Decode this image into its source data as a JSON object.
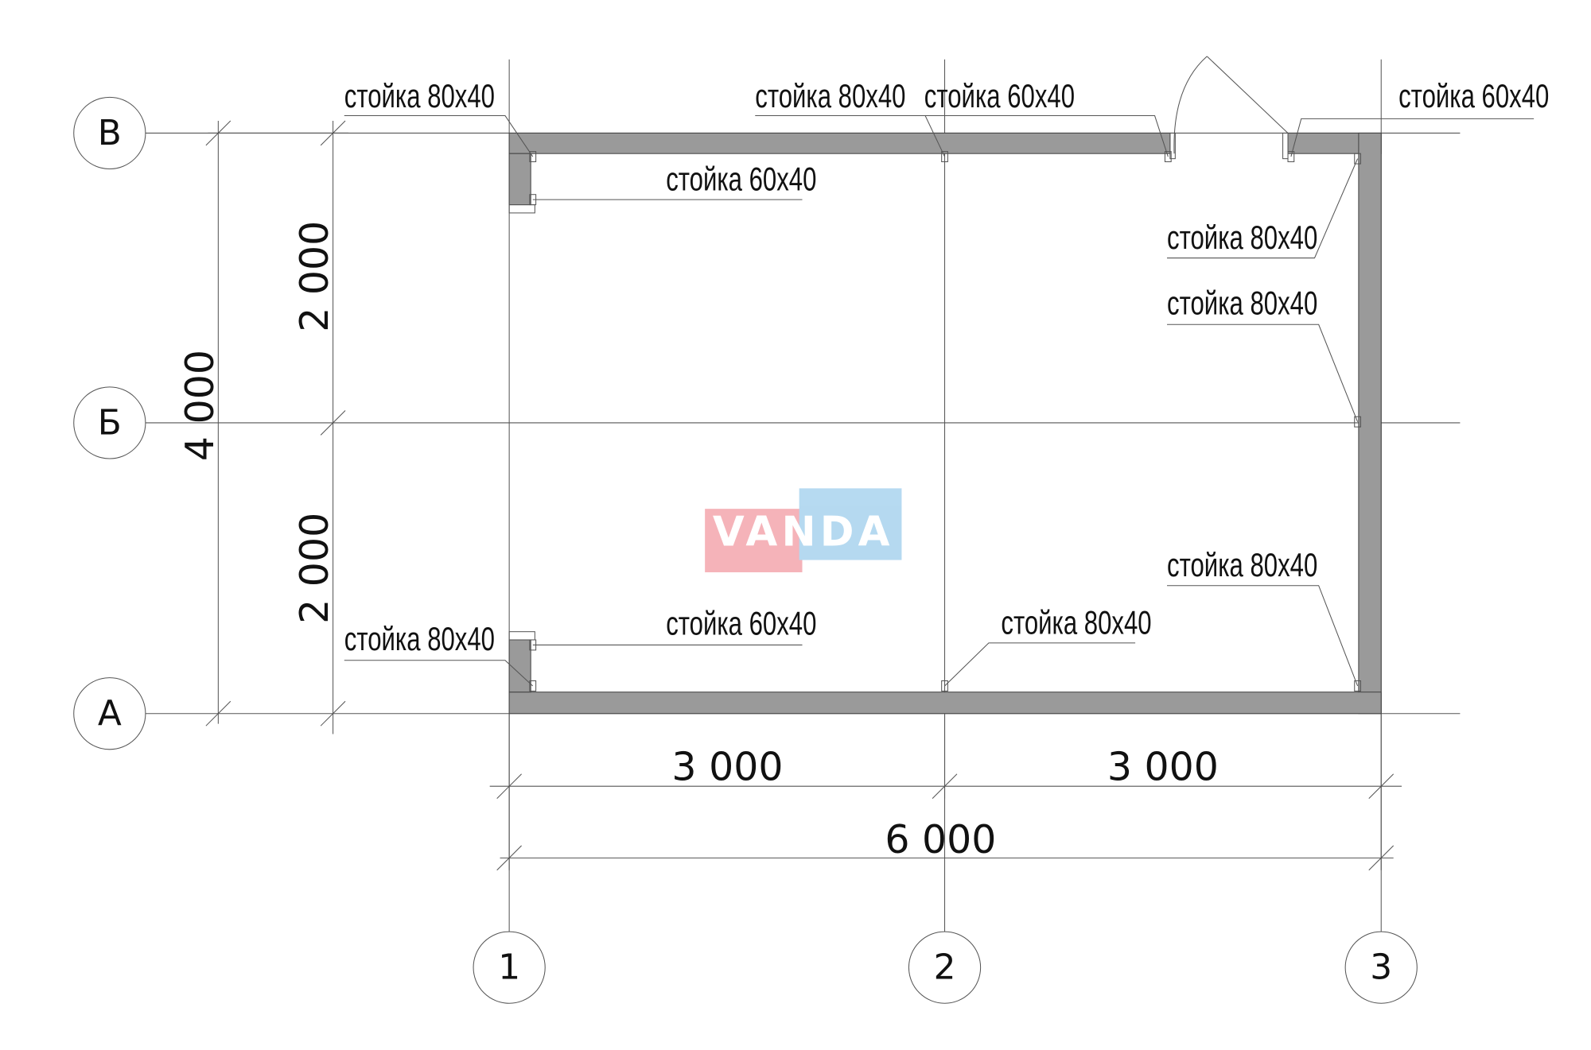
{
  "axes": {
    "rows": [
      "В",
      "Б",
      "А"
    ],
    "columns": [
      "1",
      "2",
      "3"
    ]
  },
  "dimensions": {
    "vertical_total": "4 000",
    "vertical_upper": "2 000",
    "vertical_lower": "2 000",
    "horizontal_left": "3 000",
    "horizontal_right": "3 000",
    "horizontal_total": "6 000"
  },
  "annotations": [
    "стойка 80x40",
    "стойка 60x40",
    "стойка 80x40",
    "стойка 60x40",
    "стойка 60x40",
    "стойка 80x40",
    "стойка 80x40",
    "стойка 80x40",
    "стойка 80x40",
    "стойка 60x40",
    "стойка 80x40"
  ],
  "watermark": {
    "text": "VANDA",
    "colors": [
      "#f4a6ad",
      "#a9d3ee"
    ]
  },
  "colors": {
    "wall": "#9a9a9a",
    "line": "#555555"
  }
}
